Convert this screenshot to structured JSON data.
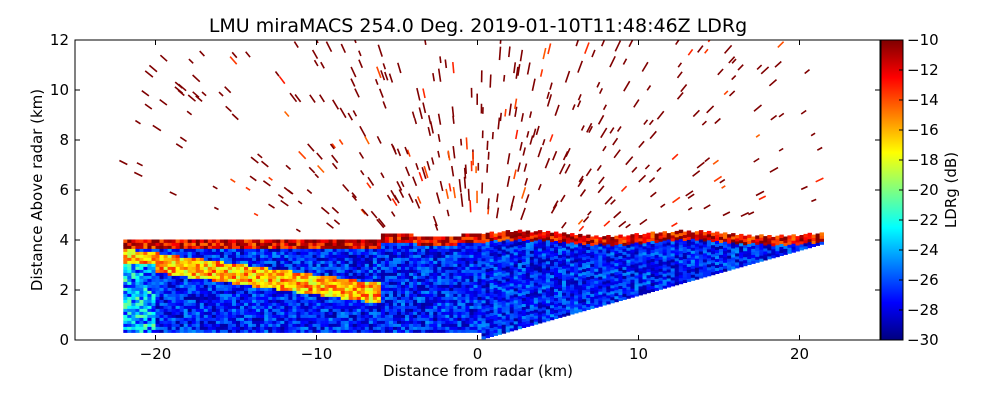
{
  "chart_data": {
    "type": "heatmap",
    "title": "LMU miraMACS 254.0 Deg. 2019-01-10T11:48:46Z  LDRg",
    "xlabel": "Distance from radar (km)",
    "ylabel": "Distance Above radar  (km)",
    "colorbar_label": "LDRg (dB)",
    "xlim": [
      -25,
      25
    ],
    "ylim": [
      0,
      12
    ],
    "clim": [
      -30,
      -10
    ],
    "x_ticks": [
      -20,
      -10,
      0,
      10,
      20
    ],
    "x_tick_labels": [
      "−20",
      "−10",
      "0",
      "10",
      "20"
    ],
    "y_ticks": [
      0,
      2,
      4,
      6,
      8,
      10,
      12
    ],
    "y_tick_labels": [
      "0",
      "2",
      "4",
      "6",
      "8",
      "10",
      "12"
    ],
    "colorbar_ticks": [
      -10,
      -12,
      -14,
      -16,
      -18,
      -20,
      -22,
      -24,
      -26,
      -28,
      -30
    ],
    "colorbar_tick_labels": [
      "−10",
      "−12",
      "−14",
      "−16",
      "−18",
      "−20",
      "−22",
      "−24",
      "−26",
      "−28",
      "−30"
    ],
    "colormap": "jet",
    "scan_elevation_deg": 254.0,
    "regions": {
      "cloud_layer_top_km": 4.2,
      "left_edge_km": -22,
      "right_edge_km": 21.5,
      "melting_layer_band": {
        "x": [
          -22,
          -6
        ],
        "y_top": [
          4.0,
          2.6
        ],
        "ldr_db": -16
      },
      "ice_region_ldr_db": -10,
      "main_cloud_ldr_db": -27
    }
  }
}
